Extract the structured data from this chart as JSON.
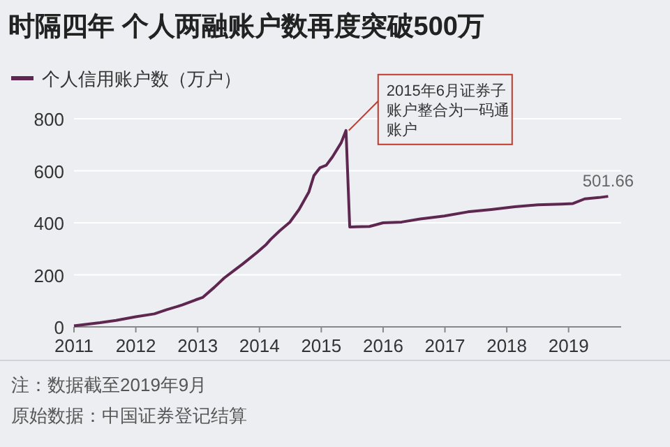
{
  "chart_data": {
    "type": "line",
    "title": "时隔四年 个人两融账户数再度突破500万",
    "series": [
      {
        "name": "个人信用账户数（万户）",
        "color": "#5e2750",
        "x": [
          2011.0,
          2011.42,
          2011.68,
          2012.0,
          2012.3,
          2012.5,
          2012.75,
          2012.97,
          2013.08,
          2013.27,
          2013.43,
          2013.58,
          2013.73,
          2013.96,
          2014.11,
          2014.18,
          2014.33,
          2014.49,
          2014.64,
          2014.8,
          2014.88,
          2014.98,
          2015.08,
          2015.18,
          2015.32,
          2015.4,
          2015.46,
          2015.78,
          2016.0,
          2016.3,
          2016.6,
          2016.99,
          2017.37,
          2017.75,
          2018.13,
          2018.5,
          2018.88,
          2019.07,
          2019.26,
          2019.49,
          2019.64
        ],
        "values": [
          4,
          16,
          25,
          39,
          50,
          66,
          84,
          104,
          113,
          152,
          188,
          215,
          242,
          286,
          317,
          336,
          370,
          402,
          451,
          519,
          581,
          612,
          621,
          653,
          707,
          755,
          384,
          386,
          400,
          403,
          415,
          426,
          442,
          451,
          462,
          469,
          472,
          474,
          492,
          497,
          501.66
        ]
      }
    ],
    "xlim": [
      2011,
      2019.85
    ],
    "xticks": [
      2011,
      2012,
      2013,
      2014,
      2015,
      2016,
      2017,
      2018,
      2019
    ],
    "ylim": [
      0,
      800
    ],
    "yticks": [
      0,
      200,
      400,
      600,
      800
    ],
    "grid": "y",
    "legend": "top left",
    "marker": "none",
    "line_style": "solid",
    "annotations": [
      {
        "text": "2015年6月证券子账户整合为一码通账户",
        "x": 2015.4,
        "y": 755
      },
      {
        "text": "501.66",
        "x": 2019.64,
        "y": 501.66
      },
      "注：数据截至2019年9月",
      "原始数据：中国证券登记结算"
    ]
  }
}
